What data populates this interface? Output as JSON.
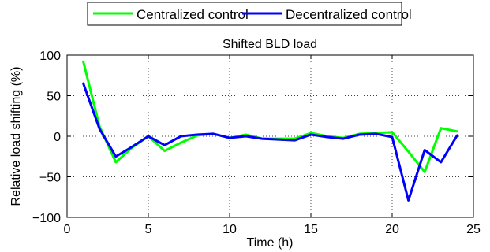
{
  "chart_data": {
    "type": "line",
    "title": "Shifted BLD load",
    "xlabel": "Time (h)",
    "ylabel": "Relative load shifting (%)",
    "xlim": [
      0,
      25
    ],
    "ylim": [
      -100,
      100
    ],
    "xticks": [
      0,
      5,
      10,
      15,
      20,
      25
    ],
    "yticks": [
      -100,
      -50,
      0,
      50,
      100
    ],
    "xtick_labels": [
      "0",
      "5",
      "10",
      "15",
      "20",
      "25"
    ],
    "ytick_labels": [
      "−100",
      "−50",
      "0",
      "50",
      "100"
    ],
    "grid": true,
    "legend_position": "top-center",
    "x": [
      1,
      2,
      3,
      4,
      5,
      6,
      7,
      8,
      9,
      10,
      11,
      12,
      13,
      14,
      15,
      16,
      17,
      18,
      19,
      20,
      21,
      22,
      23,
      24
    ],
    "series": [
      {
        "name": "Centralized control",
        "color": "#00ff00",
        "values": [
          92,
          12,
          -32,
          -14,
          0,
          -18,
          -8,
          1,
          3,
          -2,
          2,
          -3,
          -3,
          -3,
          4,
          0,
          -2,
          3,
          4,
          5,
          -19,
          -44,
          10,
          6
        ]
      },
      {
        "name": "Decentralized control",
        "color": "#0000ff",
        "values": [
          65,
          9,
          -25,
          -13,
          0,
          -11,
          0,
          2,
          3,
          -2,
          0,
          -3,
          -4,
          -5,
          2,
          -1,
          -3,
          2,
          3,
          -1,
          -79,
          -17,
          -32,
          1
        ]
      }
    ]
  }
}
